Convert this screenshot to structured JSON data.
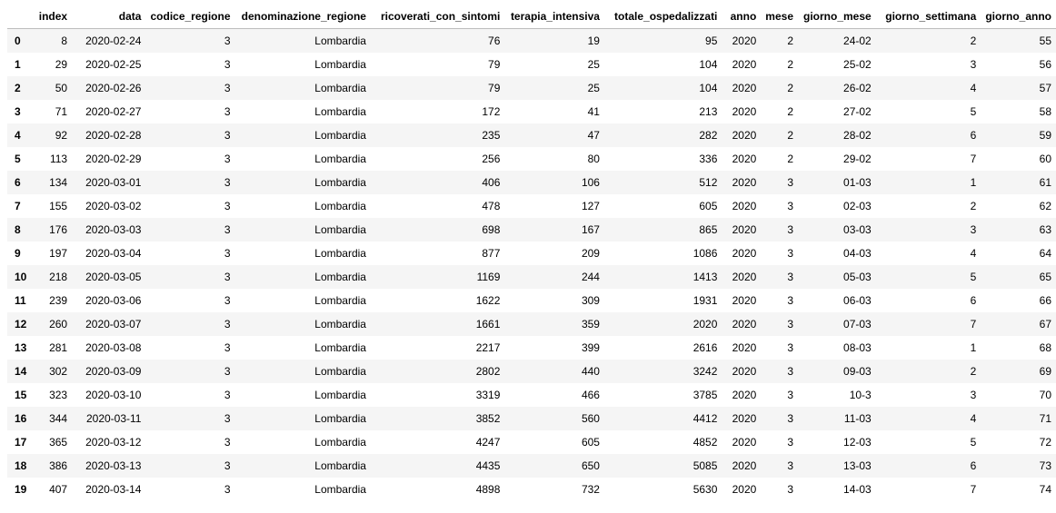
{
  "dataframe": {
    "columns": [
      "",
      "index",
      "data",
      "codice_regione",
      "denominazione_regione",
      "ricoverati_con_sintomi",
      "terapia_intensiva",
      "totale_ospedalizzati",
      "anno",
      "mese",
      "giorno_mese",
      "giorno_settimana",
      "giorno_anno"
    ],
    "rows": [
      [
        "0",
        "8",
        "2020-02-24",
        "3",
        "Lombardia",
        "76",
        "19",
        "95",
        "2020",
        "2",
        "24-02",
        "2",
        "55"
      ],
      [
        "1",
        "29",
        "2020-02-25",
        "3",
        "Lombardia",
        "79",
        "25",
        "104",
        "2020",
        "2",
        "25-02",
        "3",
        "56"
      ],
      [
        "2",
        "50",
        "2020-02-26",
        "3",
        "Lombardia",
        "79",
        "25",
        "104",
        "2020",
        "2",
        "26-02",
        "4",
        "57"
      ],
      [
        "3",
        "71",
        "2020-02-27",
        "3",
        "Lombardia",
        "172",
        "41",
        "213",
        "2020",
        "2",
        "27-02",
        "5",
        "58"
      ],
      [
        "4",
        "92",
        "2020-02-28",
        "3",
        "Lombardia",
        "235",
        "47",
        "282",
        "2020",
        "2",
        "28-02",
        "6",
        "59"
      ],
      [
        "5",
        "113",
        "2020-02-29",
        "3",
        "Lombardia",
        "256",
        "80",
        "336",
        "2020",
        "2",
        "29-02",
        "7",
        "60"
      ],
      [
        "6",
        "134",
        "2020-03-01",
        "3",
        "Lombardia",
        "406",
        "106",
        "512",
        "2020",
        "3",
        "01-03",
        "1",
        "61"
      ],
      [
        "7",
        "155",
        "2020-03-02",
        "3",
        "Lombardia",
        "478",
        "127",
        "605",
        "2020",
        "3",
        "02-03",
        "2",
        "62"
      ],
      [
        "8",
        "176",
        "2020-03-03",
        "3",
        "Lombardia",
        "698",
        "167",
        "865",
        "2020",
        "3",
        "03-03",
        "3",
        "63"
      ],
      [
        "9",
        "197",
        "2020-03-04",
        "3",
        "Lombardia",
        "877",
        "209",
        "1086",
        "2020",
        "3",
        "04-03",
        "4",
        "64"
      ],
      [
        "10",
        "218",
        "2020-03-05",
        "3",
        "Lombardia",
        "1169",
        "244",
        "1413",
        "2020",
        "3",
        "05-03",
        "5",
        "65"
      ],
      [
        "11",
        "239",
        "2020-03-06",
        "3",
        "Lombardia",
        "1622",
        "309",
        "1931",
        "2020",
        "3",
        "06-03",
        "6",
        "66"
      ],
      [
        "12",
        "260",
        "2020-03-07",
        "3",
        "Lombardia",
        "1661",
        "359",
        "2020",
        "2020",
        "3",
        "07-03",
        "7",
        "67"
      ],
      [
        "13",
        "281",
        "2020-03-08",
        "3",
        "Lombardia",
        "2217",
        "399",
        "2616",
        "2020",
        "3",
        "08-03",
        "1",
        "68"
      ],
      [
        "14",
        "302",
        "2020-03-09",
        "3",
        "Lombardia",
        "2802",
        "440",
        "3242",
        "2020",
        "3",
        "09-03",
        "2",
        "69"
      ],
      [
        "15",
        "323",
        "2020-03-10",
        "3",
        "Lombardia",
        "3319",
        "466",
        "3785",
        "2020",
        "3",
        "10-3",
        "3",
        "70"
      ],
      [
        "16",
        "344",
        "2020-03-11",
        "3",
        "Lombardia",
        "3852",
        "560",
        "4412",
        "2020",
        "3",
        "11-03",
        "4",
        "71"
      ],
      [
        "17",
        "365",
        "2020-03-12",
        "3",
        "Lombardia",
        "4247",
        "605",
        "4852",
        "2020",
        "3",
        "12-03",
        "5",
        "72"
      ],
      [
        "18",
        "386",
        "2020-03-13",
        "3",
        "Lombardia",
        "4435",
        "650",
        "5085",
        "2020",
        "3",
        "13-03",
        "6",
        "73"
      ],
      [
        "19",
        "407",
        "2020-03-14",
        "3",
        "Lombardia",
        "4898",
        "732",
        "5630",
        "2020",
        "3",
        "14-03",
        "7",
        "74"
      ]
    ]
  }
}
